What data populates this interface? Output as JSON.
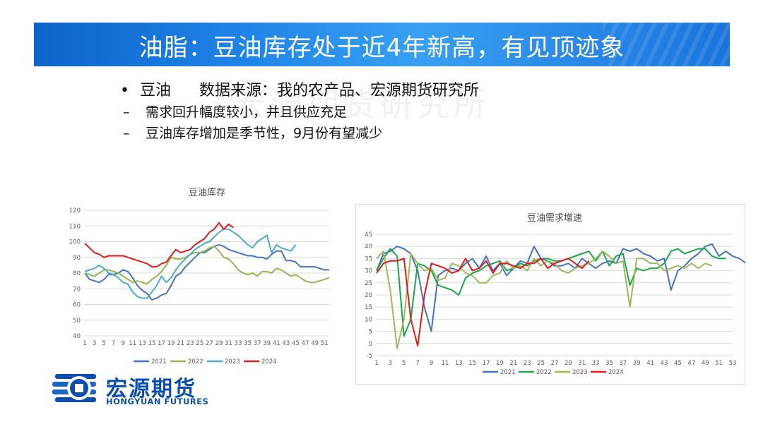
{
  "title": "油脂：豆油库存处于近4年新高，有见顶迹象",
  "bullets": {
    "main_label": "豆油",
    "source": "数据来源：我的农产品、宏源期货研究所",
    "sub": [
      "需求回升幅度较小，并且供应充足",
      "豆油库存增加是季节性，9月份有望减少"
    ]
  },
  "watermark": "宏源期货研究所",
  "logo": {
    "cn": "宏源期货",
    "en": "HONGYUAN FUTURES"
  },
  "colors": {
    "s2021": "#4472c4",
    "s2022": "#92b850",
    "s2023": "#4bacc6",
    "s2024": "#e31a1c",
    "s2022_b": "#1aa84a",
    "s2023_b": "#9bbb59"
  },
  "chart_data": [
    {
      "type": "line",
      "title": "豆油库存",
      "x_ticks": [
        "1",
        "3",
        "5",
        "7",
        "9",
        "11",
        "13",
        "15",
        "17",
        "19",
        "21",
        "23",
        "25",
        "27",
        "29",
        "31",
        "33",
        "35",
        "37",
        "39",
        "41",
        "43",
        "45",
        "47",
        "49",
        "51"
      ],
      "ylim": [
        40,
        120
      ],
      "y_ticks": [
        "40",
        "50",
        "60",
        "70",
        "80",
        "90",
        "100",
        "110",
        "120"
      ],
      "grid": true,
      "legend": "bottom",
      "series": [
        {
          "name": "2021",
          "values": [
            80,
            76,
            75,
            74,
            76,
            79,
            79,
            80,
            82,
            81,
            77,
            72,
            69,
            67,
            63,
            64,
            66,
            67,
            72,
            78,
            80,
            84,
            87,
            90,
            93,
            93,
            95,
            97,
            98,
            97,
            95,
            94,
            93,
            92,
            91,
            91,
            90,
            90,
            89,
            92,
            94,
            94,
            88,
            88,
            87,
            84,
            84,
            84,
            84,
            83,
            82,
            82
          ]
        },
        {
          "name": "2022",
          "values": [
            80,
            79,
            78,
            80,
            82,
            82,
            81,
            80,
            78,
            76,
            74,
            75,
            74,
            73,
            76,
            78,
            81,
            85,
            90,
            89,
            89,
            90,
            92,
            93,
            93,
            94,
            96,
            97,
            94,
            90,
            89,
            86,
            82,
            80,
            79,
            80,
            78,
            81,
            81,
            80,
            83,
            82,
            80,
            78,
            79,
            77,
            75,
            74,
            74,
            75,
            76,
            77
          ]
        },
        {
          "name": "2023",
          "values": [
            81,
            82,
            83,
            85,
            83,
            80,
            79,
            77,
            74,
            73,
            68,
            65,
            64,
            64,
            68,
            72,
            78,
            74,
            77,
            82,
            86,
            89,
            92,
            95,
            97,
            99,
            100,
            103,
            106,
            108,
            108,
            106,
            104,
            101,
            98,
            96,
            100,
            102,
            104,
            93,
            98,
            96,
            95,
            94,
            98
          ]
        },
        {
          "name": "2024",
          "values": [
            99,
            96,
            93,
            92,
            90,
            91,
            91,
            91,
            91,
            90,
            89,
            88,
            87,
            86,
            84,
            84,
            86,
            87,
            91,
            95,
            93,
            94,
            95,
            98,
            100,
            102,
            106,
            108,
            112,
            108,
            111,
            109
          ]
        }
      ]
    },
    {
      "type": "line",
      "title": "豆油需求增速",
      "x_ticks": [
        "1",
        "3",
        "5",
        "7",
        "9",
        "11",
        "13",
        "15",
        "17",
        "19",
        "21",
        "23",
        "25",
        "27",
        "29",
        "31",
        "33",
        "35",
        "37",
        "39",
        "41",
        "43",
        "45",
        "47",
        "49",
        "51",
        "53"
      ],
      "ylim": [
        -5,
        45
      ],
      "y_ticks": [
        "-5",
        "0",
        "5",
        "10",
        "15",
        "20",
        "25",
        "30",
        "35",
        "40",
        "45"
      ],
      "grid": true,
      "legend": "bottom",
      "series": [
        {
          "name": "2021",
          "values": [
            30,
            37,
            38,
            40,
            39,
            37,
            30,
            15,
            5,
            28,
            30,
            31,
            30,
            33,
            35,
            31,
            36,
            30,
            33,
            28,
            31,
            34,
            33,
            40,
            35,
            34,
            32,
            32,
            33,
            31,
            35,
            33,
            31,
            33,
            34,
            33,
            39,
            38,
            39,
            37,
            36,
            34,
            35,
            22,
            30,
            32,
            35,
            37,
            40,
            41,
            36,
            38,
            36,
            35,
            33,
            30
          ]
        },
        {
          "name": "2022",
          "values": [
            30,
            35,
            39,
            36,
            3,
            10,
            33,
            32,
            30,
            24,
            23,
            22,
            20,
            27,
            29,
            30,
            32,
            33,
            34,
            30,
            31,
            33,
            32,
            34,
            35,
            35,
            34,
            34,
            35,
            36,
            37,
            38,
            34,
            38,
            32,
            36,
            37,
            24,
            31,
            30,
            31,
            31,
            33,
            38,
            39,
            37,
            38,
            39,
            39,
            36,
            35,
            35
          ]
        },
        {
          "name": "2023",
          "values": [
            35,
            38,
            22,
            -2,
            10,
            37,
            33,
            30,
            31,
            26,
            27,
            33,
            32,
            29,
            28,
            25,
            25,
            28,
            29,
            34,
            31,
            32,
            30,
            35,
            32,
            34,
            33,
            30,
            29,
            31,
            32,
            33,
            35,
            38,
            36,
            33,
            34,
            15,
            35,
            35,
            33,
            33,
            30,
            31,
            32,
            31,
            33,
            31,
            33,
            32
          ]
        },
        {
          "name": "2024",
          "values": [
            29,
            33,
            34,
            34,
            35,
            10,
            -1,
            20,
            33,
            32,
            31,
            29,
            30,
            35,
            30,
            31,
            34,
            29,
            33,
            33,
            32,
            31,
            33,
            33,
            35,
            31,
            33,
            34,
            35,
            33,
            31,
            34
          ]
        }
      ]
    }
  ]
}
